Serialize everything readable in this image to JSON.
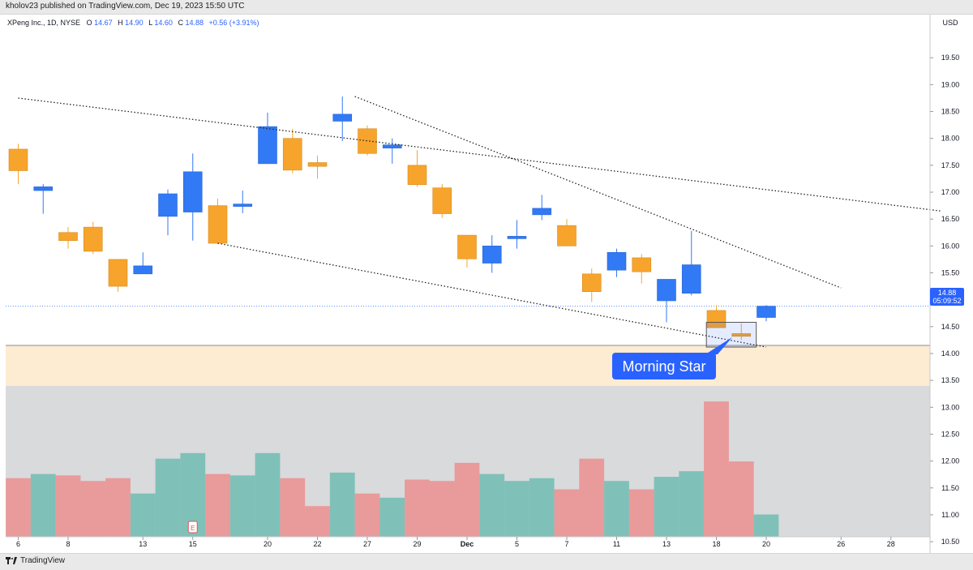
{
  "header": {
    "published": "kholov23 published on TradingView.com, Dec 19, 2023 15:50 UTC"
  },
  "footer": {
    "brand": "TradingView"
  },
  "legend": {
    "symbol": "XPeng Inc., 1D, NYSE",
    "o_label": "O",
    "o": "14.67",
    "h_label": "H",
    "h": "14.90",
    "l_label": "L",
    "l": "14.60",
    "c_label": "C",
    "c": "14.88",
    "change": "+0.56 (+3.91%)"
  },
  "price_tag": {
    "value": "14.88",
    "countdown": "05:09:52"
  },
  "annotation": {
    "text": "Morning Star"
  },
  "colors": {
    "up": "#3179f5",
    "down": "#f7a42c",
    "vol_up": "#7fc1b8",
    "vol_down": "#e99a9a",
    "accent": "#2962ff"
  },
  "chart_data": {
    "type": "candlestick",
    "currency": "USD",
    "ylim": [
      10.35,
      19.9
    ],
    "y_ticks": [
      "10.50",
      "11.00",
      "11.50",
      "12.00",
      "12.50",
      "13.00",
      "13.50",
      "14.00",
      "14.50",
      "15.00",
      "15.50",
      "16.00",
      "16.50",
      "17.00",
      "17.50",
      "18.00",
      "18.50",
      "19.00",
      "19.50"
    ],
    "x_ticks": [
      {
        "i": 0,
        "label": "6"
      },
      {
        "i": 2,
        "label": "8"
      },
      {
        "i": 5,
        "label": "13"
      },
      {
        "i": 7,
        "label": "15"
      },
      {
        "i": 10,
        "label": "20"
      },
      {
        "i": 12,
        "label": "22"
      },
      {
        "i": 14,
        "label": "27"
      },
      {
        "i": 16,
        "label": "29"
      },
      {
        "i": 18,
        "label": "Dec"
      },
      {
        "i": 20,
        "label": "5"
      },
      {
        "i": 22,
        "label": "7"
      },
      {
        "i": 24,
        "label": "11"
      },
      {
        "i": 26,
        "label": "13"
      },
      {
        "i": 28,
        "label": "18"
      },
      {
        "i": 30,
        "label": "20"
      },
      {
        "i": 33,
        "label": "26"
      },
      {
        "i": 35,
        "label": "28"
      }
    ],
    "candles": [
      {
        "o": 17.8,
        "h": 17.9,
        "l": 17.15,
        "c": 17.4
      },
      {
        "o": 17.03,
        "h": 17.15,
        "l": 16.6,
        "c": 17.1
      },
      {
        "o": 16.25,
        "h": 16.35,
        "l": 15.95,
        "c": 16.1
      },
      {
        "o": 16.35,
        "h": 16.45,
        "l": 15.85,
        "c": 15.9
      },
      {
        "o": 15.75,
        "h": 15.75,
        "l": 15.15,
        "c": 15.25
      },
      {
        "o": 15.48,
        "h": 15.88,
        "l": 15.48,
        "c": 15.63
      },
      {
        "o": 16.55,
        "h": 17.05,
        "l": 16.2,
        "c": 16.97
      },
      {
        "o": 16.63,
        "h": 17.72,
        "l": 16.1,
        "c": 17.38
      },
      {
        "o": 16.75,
        "h": 16.88,
        "l": 16.05,
        "c": 16.05
      },
      {
        "o": 16.76,
        "h": 17.03,
        "l": 16.61,
        "c": 16.78
      },
      {
        "o": 17.53,
        "h": 18.48,
        "l": 17.53,
        "c": 18.22
      },
      {
        "o": 18.0,
        "h": 18.18,
        "l": 17.35,
        "c": 17.41
      },
      {
        "o": 17.55,
        "h": 17.68,
        "l": 17.25,
        "c": 17.48
      },
      {
        "o": 18.32,
        "h": 18.78,
        "l": 17.95,
        "c": 18.45
      },
      {
        "o": 18.18,
        "h": 18.24,
        "l": 17.68,
        "c": 17.72
      },
      {
        "o": 17.82,
        "h": 18.0,
        "l": 17.53,
        "c": 17.88
      },
      {
        "o": 17.5,
        "h": 17.78,
        "l": 17.1,
        "c": 17.14
      },
      {
        "o": 17.08,
        "h": 17.15,
        "l": 16.52,
        "c": 16.6
      },
      {
        "o": 16.2,
        "h": 16.2,
        "l": 15.6,
        "c": 15.76
      },
      {
        "o": 15.68,
        "h": 16.2,
        "l": 15.5,
        "c": 16.0
      },
      {
        "o": 16.14,
        "h": 16.48,
        "l": 15.95,
        "c": 16.18
      },
      {
        "o": 16.58,
        "h": 16.95,
        "l": 16.48,
        "c": 16.7
      },
      {
        "o": 16.38,
        "h": 16.5,
        "l": 16.0,
        "c": 16.0
      },
      {
        "o": 15.48,
        "h": 15.58,
        "l": 14.96,
        "c": 15.15
      },
      {
        "o": 15.55,
        "h": 15.95,
        "l": 15.42,
        "c": 15.88
      },
      {
        "o": 15.78,
        "h": 15.85,
        "l": 15.3,
        "c": 15.52
      },
      {
        "o": 14.98,
        "h": 15.38,
        "l": 14.58,
        "c": 15.38
      },
      {
        "o": 15.12,
        "h": 16.28,
        "l": 15.08,
        "c": 15.65
      },
      {
        "o": 14.8,
        "h": 14.9,
        "l": 14.48,
        "c": 14.48
      },
      {
        "o": 14.37,
        "h": 14.56,
        "l": 14.25,
        "c": 14.32
      },
      {
        "o": 14.67,
        "h": 14.9,
        "l": 14.6,
        "c": 14.88
      }
    ],
    "volume": [
      {
        "v": 0.42,
        "up": false
      },
      {
        "v": 0.45,
        "up": true
      },
      {
        "v": 0.44,
        "up": false
      },
      {
        "v": 0.4,
        "up": false
      },
      {
        "v": 0.42,
        "up": false
      },
      {
        "v": 0.31,
        "up": true
      },
      {
        "v": 0.56,
        "up": true
      },
      {
        "v": 0.6,
        "up": true
      },
      {
        "v": 0.45,
        "up": false
      },
      {
        "v": 0.44,
        "up": true
      },
      {
        "v": 0.6,
        "up": true
      },
      {
        "v": 0.42,
        "up": false
      },
      {
        "v": 0.22,
        "up": false
      },
      {
        "v": 0.46,
        "up": true
      },
      {
        "v": 0.31,
        "up": false
      },
      {
        "v": 0.28,
        "up": true
      },
      {
        "v": 0.41,
        "up": false
      },
      {
        "v": 0.4,
        "up": false
      },
      {
        "v": 0.53,
        "up": false
      },
      {
        "v": 0.45,
        "up": true
      },
      {
        "v": 0.4,
        "up": true
      },
      {
        "v": 0.42,
        "up": true
      },
      {
        "v": 0.34,
        "up": false
      },
      {
        "v": 0.56,
        "up": false
      },
      {
        "v": 0.4,
        "up": true
      },
      {
        "v": 0.34,
        "up": false
      },
      {
        "v": 0.43,
        "up": true
      },
      {
        "v": 0.47,
        "up": true
      },
      {
        "v": 0.97,
        "up": false
      },
      {
        "v": 0.54,
        "up": false
      },
      {
        "v": 0.16,
        "up": true
      }
    ],
    "zones": [
      {
        "kind": "support",
        "from": 13.18,
        "to": 14.15
      }
    ],
    "trendlines": [
      {
        "x1": 0.0,
        "y1": 18.75,
        "x2": 37.0,
        "y2": 16.65
      },
      {
        "x1": 8.0,
        "y1": 16.05,
        "x2": 30.0,
        "y2": 14.12
      },
      {
        "x1": 13.5,
        "y1": 18.78,
        "x2": 33.0,
        "y2": 15.22
      }
    ],
    "pattern_box": {
      "i_from": 27.6,
      "i_to": 29.6,
      "y_from": 14.12,
      "y_to": 14.58
    },
    "current_price": 14.88
  }
}
